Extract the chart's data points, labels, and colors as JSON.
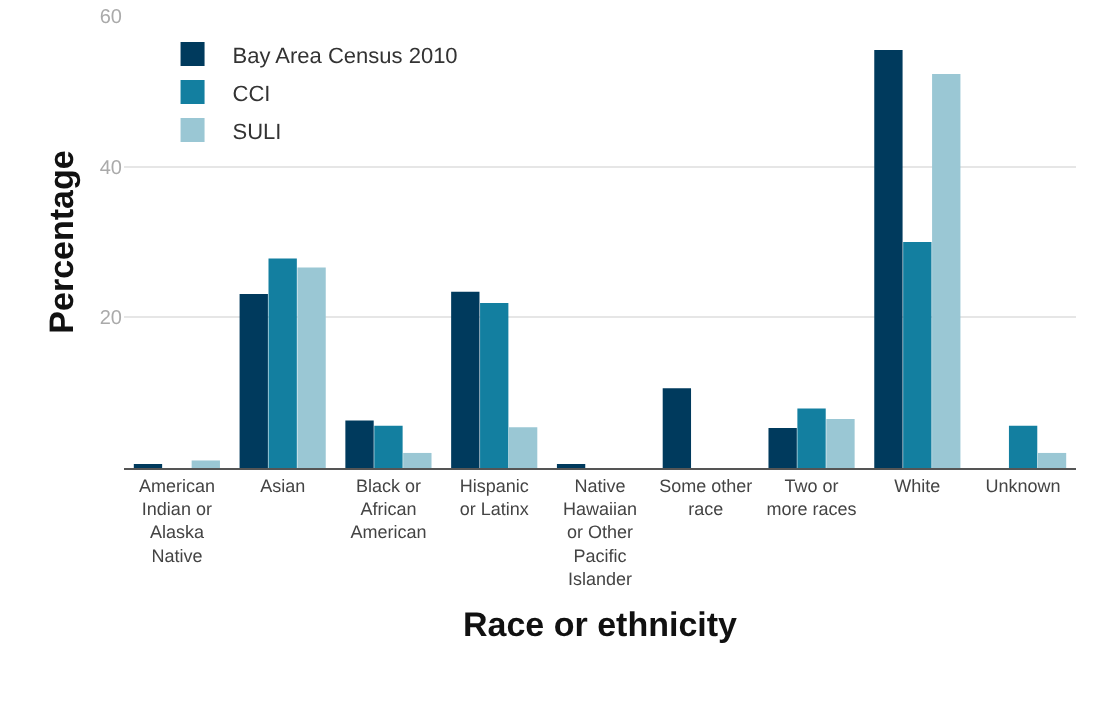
{
  "chart_data": {
    "type": "bar",
    "xlabel": "Race or ethnicity",
    "ylabel": "Percentage",
    "categories": [
      "American Indian or Alaska Native",
      "Asian",
      "Black or African American",
      "Hispanic or Latinx",
      "Native Hawaiian or Other Pacific Islander",
      "Some other race",
      "Two or more races",
      "White",
      "Unknown"
    ],
    "series": [
      {
        "name": "Bay Area Census 2010",
        "color": "#003a5d",
        "values": [
          0.5,
          23.1,
          6.3,
          23.4,
          0.4,
          10.6,
          5.3,
          55.5,
          0
        ]
      },
      {
        "name": "CCI",
        "color": "#137fa0",
        "values": [
          0,
          27.8,
          5.6,
          21.9,
          0,
          0,
          7.9,
          30.0,
          5.6
        ]
      },
      {
        "name": "SULI",
        "color": "#9ac7d4",
        "values": [
          1.0,
          26.6,
          2.0,
          5.4,
          0,
          0,
          6.5,
          52.3,
          2.0
        ]
      }
    ],
    "ylim": [
      0,
      60
    ],
    "yticks": [
      20,
      40,
      60
    ],
    "grid": "y",
    "legend": "top left"
  }
}
